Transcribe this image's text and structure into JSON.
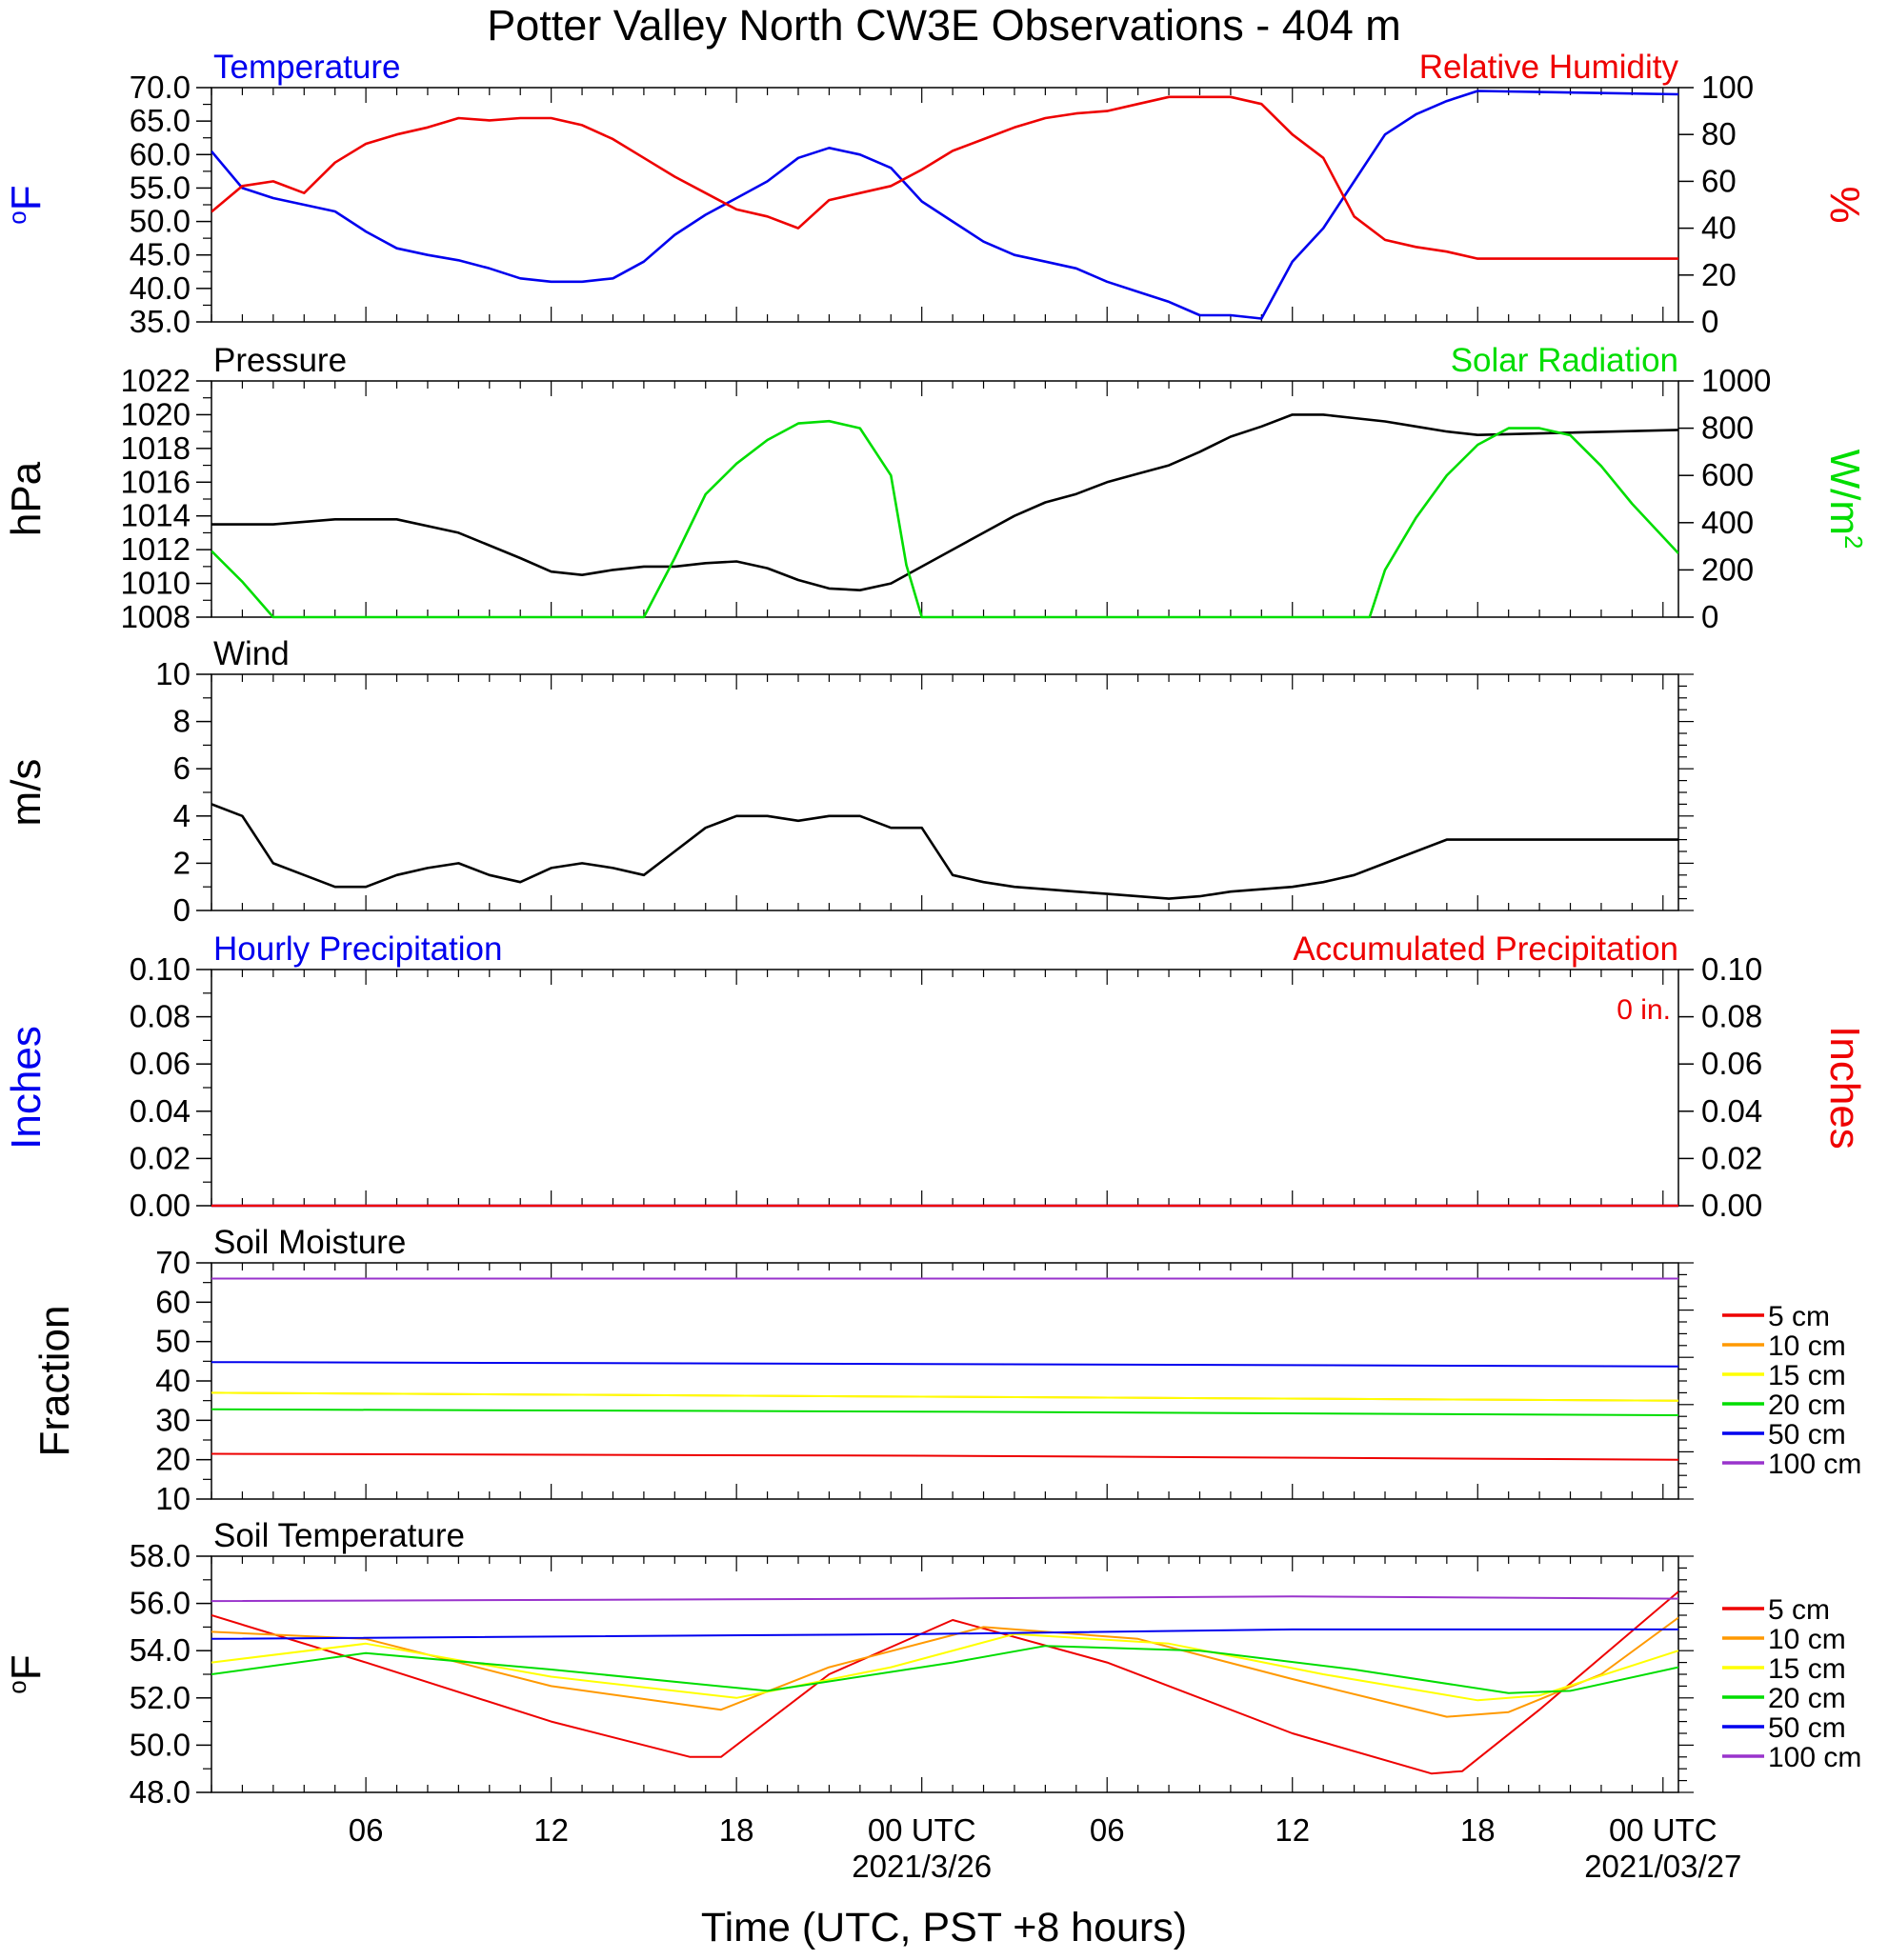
{
  "figure": {
    "title": "Potter Valley North CW3E Observations - 404 m",
    "xlabel": "Time (UTC, PST +8 hours)",
    "x_ticks": [
      "06",
      "12",
      "18",
      "00 UTC",
      "06",
      "12",
      "18",
      "00 UTC"
    ],
    "date_labels": [
      {
        "label": "2021/3/26",
        "at_tick": 3
      },
      {
        "label": "2021/03/27",
        "at_tick": 7
      }
    ],
    "colors": {
      "blue": "#0000ee",
      "red": "#ee0000",
      "green": "#00dd00",
      "black": "#000000"
    }
  },
  "chart_data": [
    {
      "type": "line",
      "title_left": "Temperature",
      "title_right": "Relative Humidity",
      "ylabel_left": "oF",
      "ylabel_right": "%",
      "ylim_left": [
        35,
        70
      ],
      "yticks_left": [
        "70.0",
        "65.0",
        "60.0",
        "55.0",
        "50.0",
        "45.0",
        "40.0",
        "35.0"
      ],
      "ylim_right": [
        0,
        100
      ],
      "yticks_right": [
        "100",
        "80",
        "60",
        "40",
        "20",
        "0"
      ],
      "series": [
        {
          "name": "Temperature",
          "axis": "left",
          "color": "#0000ee",
          "x": [
            1,
            2,
            3,
            4,
            5,
            6,
            7,
            8,
            9,
            10,
            11,
            12,
            13,
            14,
            15,
            16,
            17,
            18,
            19,
            20,
            21,
            22,
            23,
            24,
            25,
            26,
            27,
            28,
            29,
            30,
            31,
            32,
            33,
            34,
            35,
            36,
            37,
            38,
            39,
            40,
            41,
            42,
            48.5
          ],
          "y": [
            60.5,
            55,
            53.5,
            52.5,
            51.5,
            48.5,
            46,
            45,
            44.2,
            43,
            41.5,
            41,
            41,
            41.5,
            44,
            48,
            51,
            53.5,
            56,
            59.5,
            61,
            60,
            58,
            53,
            50,
            47,
            45,
            44,
            43,
            41,
            39.5,
            38,
            36,
            36,
            35.5,
            44,
            49,
            56,
            63,
            66,
            68,
            69.5,
            69
          ]
        },
        {
          "name": "Relative Humidity",
          "axis": "right",
          "color": "#ee0000",
          "x": [
            1,
            2,
            3,
            4,
            5,
            6,
            7,
            8,
            9,
            10,
            11,
            12,
            13,
            14,
            15,
            16,
            17,
            18,
            19,
            20,
            21,
            22,
            23,
            24,
            25,
            26,
            27,
            28,
            29,
            30,
            31,
            32,
            33,
            34,
            35,
            36,
            37,
            38,
            39,
            40,
            41,
            42,
            48.5
          ],
          "y": [
            47,
            58,
            60,
            55,
            68,
            76,
            80,
            83,
            87,
            86,
            87,
            87,
            84,
            78,
            70,
            62,
            55,
            48,
            45,
            40,
            52,
            55,
            58,
            65,
            73,
            78,
            83,
            87,
            89,
            90,
            93,
            96,
            96,
            96,
            93,
            80,
            70,
            45,
            35,
            32,
            30,
            27,
            27
          ]
        }
      ]
    },
    {
      "type": "line",
      "title_left": "Pressure",
      "title_right": "Solar Radiation",
      "ylabel_left": "hPa",
      "ylabel_right": "W/m2",
      "ylim_left": [
        1008,
        1022
      ],
      "yticks_left": [
        "1022",
        "1020",
        "1018",
        "1016",
        "1014",
        "1012",
        "1010",
        "1008"
      ],
      "ylim_right": [
        0,
        1000
      ],
      "yticks_right": [
        "1000",
        "800",
        "600",
        "400",
        "200",
        "0"
      ],
      "series": [
        {
          "name": "Pressure",
          "axis": "left",
          "color": "#000000",
          "x": [
            1,
            3,
            5,
            7,
            9,
            11,
            12,
            13,
            14,
            15,
            16,
            17,
            18,
            19,
            20,
            21,
            22,
            23,
            24,
            25,
            26,
            27,
            28,
            29,
            30,
            31,
            32,
            33,
            34,
            35,
            36,
            37,
            38,
            39,
            40,
            41,
            42,
            48.5
          ],
          "y": [
            1013.5,
            1013.5,
            1013.8,
            1013.8,
            1013,
            1011.5,
            1010.7,
            1010.5,
            1010.8,
            1011,
            1011,
            1011.2,
            1011.3,
            1010.9,
            1010.2,
            1009.7,
            1009.6,
            1010,
            1011,
            1012,
            1013,
            1014,
            1014.8,
            1015.3,
            1016,
            1016.5,
            1017,
            1017.8,
            1018.7,
            1019.3,
            1020,
            1020,
            1019.8,
            1019.6,
            1019.3,
            1019,
            1018.8,
            1019.1
          ]
        },
        {
          "name": "Solar Radiation",
          "axis": "right",
          "color": "#00dd00",
          "x": [
            1,
            2,
            3,
            14.5,
            15,
            16,
            17,
            18,
            19,
            20,
            21,
            22,
            23,
            23.5,
            24,
            25,
            38.5,
            39,
            40,
            41,
            42,
            43,
            44,
            45,
            46,
            47,
            48.5
          ],
          "y": [
            280,
            150,
            0,
            0,
            0,
            250,
            520,
            650,
            750,
            820,
            830,
            800,
            600,
            220,
            0,
            0,
            0,
            200,
            420,
            600,
            730,
            800,
            800,
            770,
            640,
            480,
            270
          ]
        }
      ]
    },
    {
      "type": "line",
      "title_left": "Wind",
      "ylabel_left": "m/s",
      "ylim_left": [
        0,
        10
      ],
      "yticks_left": [
        "10",
        "8",
        "6",
        "4",
        "2",
        "0"
      ],
      "series": [
        {
          "name": "Wind",
          "axis": "left",
          "color": "#000000",
          "x": [
            1,
            2,
            3,
            4,
            5,
            6,
            7,
            8,
            9,
            10,
            11,
            12,
            13,
            14,
            15,
            16,
            17,
            18,
            19,
            20,
            21,
            22,
            23,
            24,
            25,
            26,
            27,
            28,
            29,
            30,
            31,
            32,
            33,
            34,
            35,
            36,
            37,
            38,
            39,
            40,
            41,
            42,
            48.5
          ],
          "y": [
            4.5,
            4,
            2,
            1.5,
            1,
            1,
            1.5,
            1.8,
            2,
            1.5,
            1.2,
            1.8,
            2,
            1.8,
            1.5,
            2.5,
            3.5,
            4,
            4,
            3.8,
            4,
            4,
            3.5,
            3.5,
            1.5,
            1.2,
            1,
            0.9,
            0.8,
            0.7,
            0.6,
            0.5,
            0.6,
            0.8,
            0.9,
            1,
            1.2,
            1.5,
            2,
            2.5,
            3,
            3,
            3
          ]
        }
      ]
    },
    {
      "type": "line",
      "title_left": "Hourly Precipitation",
      "title_right": "Accumulated Precipitation",
      "annotation": "0 in.",
      "ylabel_left": "Inches",
      "ylabel_right": "Inches",
      "ylim_left": [
        0,
        0.1
      ],
      "yticks_left": [
        "0.10",
        "0.08",
        "0.06",
        "0.04",
        "0.02",
        "0.00"
      ],
      "ylim_right": [
        0,
        0.1
      ],
      "yticks_right": [
        "0.10",
        "0.08",
        "0.06",
        "0.04",
        "0.02",
        "0.00"
      ],
      "series": [
        {
          "name": "Hourly Precipitation",
          "axis": "left",
          "color": "#0000ee",
          "x": [
            1,
            48.5
          ],
          "y": [
            0,
            0
          ]
        },
        {
          "name": "Accumulated Precipitation",
          "axis": "right",
          "color": "#ee0000",
          "x": [
            1,
            48.5
          ],
          "y": [
            0,
            0
          ]
        }
      ]
    },
    {
      "type": "line",
      "title_left": "Soil Moisture",
      "ylabel_left": "Fraction",
      "ylim_left": [
        10,
        70
      ],
      "yticks_left": [
        "70",
        "60",
        "50",
        "40",
        "30",
        "20",
        "10"
      ],
      "legend_position": "right",
      "series": [
        {
          "name": "5 cm",
          "color": "#ee0000",
          "x": [
            1,
            24,
            48.5
          ],
          "y": [
            21.5,
            21,
            20
          ]
        },
        {
          "name": "10 cm",
          "color": "#ff9900",
          "x": [
            1,
            24,
            48.5
          ],
          "y": [
            37,
            36,
            35
          ]
        },
        {
          "name": "15 cm",
          "color": "#ffff00",
          "x": [
            1,
            24,
            48.5
          ],
          "y": [
            37,
            36,
            35
          ]
        },
        {
          "name": "20 cm",
          "color": "#00dd00",
          "x": [
            1,
            24,
            48.5
          ],
          "y": [
            32.8,
            32.2,
            31.3
          ]
        },
        {
          "name": "50 cm",
          "color": "#0000ee",
          "x": [
            1,
            24,
            48.5
          ],
          "y": [
            44.8,
            44.3,
            43.7
          ]
        },
        {
          "name": "100 cm",
          "color": "#9933cc",
          "x": [
            1,
            24,
            48.5
          ],
          "y": [
            66,
            66,
            66
          ]
        }
      ]
    },
    {
      "type": "line",
      "title_left": "Soil Temperature",
      "ylabel_left": "oF",
      "ylim_left": [
        48,
        58
      ],
      "yticks_left": [
        "58.0",
        "56.0",
        "54.0",
        "52.0",
        "50.0",
        "48.0"
      ],
      "legend_position": "right",
      "series": [
        {
          "name": "5 cm",
          "color": "#ee0000",
          "x": [
            1,
            6,
            12,
            16.5,
            17.5,
            21,
            25,
            30,
            36,
            40.5,
            41.5,
            44,
            48.5
          ],
          "y": [
            55.5,
            53.5,
            51,
            49.5,
            49.5,
            53,
            55.3,
            53.5,
            50.5,
            48.8,
            48.9,
            51.5,
            56.5
          ]
        },
        {
          "name": "10 cm",
          "color": "#ff9900",
          "x": [
            1,
            6,
            12,
            17.5,
            21,
            26,
            31,
            36,
            41,
            43,
            46,
            48.5
          ],
          "y": [
            54.8,
            54.5,
            52.5,
            51.5,
            53.3,
            55,
            54.5,
            52.8,
            51.2,
            51.4,
            53,
            55.4
          ]
        },
        {
          "name": "15 cm",
          "color": "#ffff00",
          "x": [
            1,
            6,
            12,
            18,
            23,
            27,
            32,
            37,
            42,
            44,
            48.5
          ],
          "y": [
            53.5,
            54.3,
            52.9,
            52,
            53.3,
            54.7,
            54.3,
            53,
            51.9,
            52.1,
            54
          ]
        },
        {
          "name": "20 cm",
          "color": "#00dd00",
          "x": [
            1,
            6,
            12,
            19,
            25,
            28,
            33,
            38,
            43,
            45,
            48.5
          ],
          "y": [
            53,
            53.9,
            53.2,
            52.3,
            53.5,
            54.2,
            54,
            53.2,
            52.2,
            52.3,
            53.3
          ]
        },
        {
          "name": "50 cm",
          "color": "#0000ee",
          "x": [
            1,
            24,
            36,
            48.5
          ],
          "y": [
            54.5,
            54.7,
            54.9,
            54.9
          ]
        },
        {
          "name": "100 cm",
          "color": "#9933cc",
          "x": [
            1,
            24,
            36,
            48.5
          ],
          "y": [
            56.1,
            56.2,
            56.3,
            56.2
          ]
        }
      ]
    }
  ]
}
